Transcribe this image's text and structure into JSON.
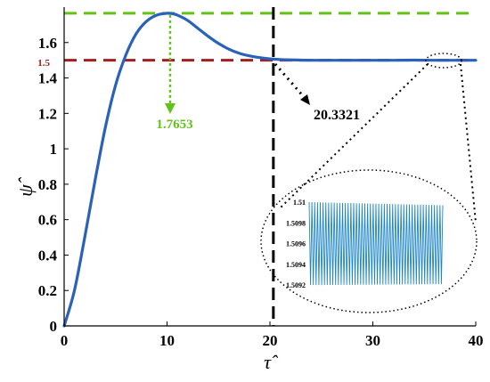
{
  "chart_data": {
    "type": "line",
    "xlabel": "τ̂",
    "ylabel": "ψ̂",
    "xlim": [
      0,
      40
    ],
    "ylim": [
      0,
      1.8
    ],
    "grid": false,
    "x_ticks": [
      0,
      10,
      20,
      30,
      40
    ],
    "y_ticks": [
      0,
      0.2,
      0.4,
      0.6,
      0.8,
      1,
      1.2,
      1.4,
      1.6
    ],
    "y_tick_labels": [
      "0",
      "0.2",
      "0.4",
      "0.6",
      "0.8",
      "1",
      "1.2",
      "1.4",
      "1.6"
    ],
    "series": [
      {
        "color": "#2b62b9",
        "x": [
          0,
          1,
          2,
          3,
          4,
          5,
          6,
          7,
          8,
          9,
          10,
          10.5,
          11,
          12,
          13,
          14,
          15,
          16,
          17,
          18,
          19,
          20,
          21,
          22,
          23,
          24,
          25,
          26,
          28,
          30,
          32,
          34,
          36,
          38,
          40
        ],
        "y": [
          0,
          0.2,
          0.5,
          0.82,
          1.12,
          1.36,
          1.53,
          1.65,
          1.72,
          1.755,
          1.765,
          1.763,
          1.755,
          1.725,
          1.68,
          1.635,
          1.595,
          1.563,
          1.54,
          1.525,
          1.515,
          1.508,
          1.504,
          1.502,
          1.501,
          1.5,
          1.5,
          1.5,
          1.5,
          1.5,
          1.5,
          1.501,
          1.5,
          1.5,
          1.5
        ]
      }
    ],
    "reference_lines": [
      {
        "axis": "y",
        "value": 1.7653,
        "color": "#63c21a",
        "style": "dashed"
      },
      {
        "axis": "y",
        "value": 1.5,
        "color": "#a31f1f",
        "style": "dashed"
      },
      {
        "axis": "x",
        "value": 20.3321,
        "color": "#000000",
        "style": "dashed"
      }
    ],
    "annotations": {
      "peak_value": "1.7653",
      "peak_at": [
        10.3,
        1.7653
      ],
      "peak_color": "#63c21a",
      "settle_label": "20.3321",
      "setpoint_label": "1.5",
      "setpoint_color": "#a31f1f"
    },
    "inset": {
      "type": "line",
      "y_ticks": [
        1.5092,
        1.5094,
        1.5096,
        1.5098,
        1.51
      ],
      "y_tick_labels": [
        "1.5092",
        "1.5094",
        "1.5096",
        "1.5098",
        "1.51"
      ],
      "ylim": [
        1.50915,
        1.51012
      ],
      "color": "#1f86c4",
      "oscillation_min": 1.5092,
      "oscillation_max": 1.51,
      "cycles": 48
    }
  }
}
